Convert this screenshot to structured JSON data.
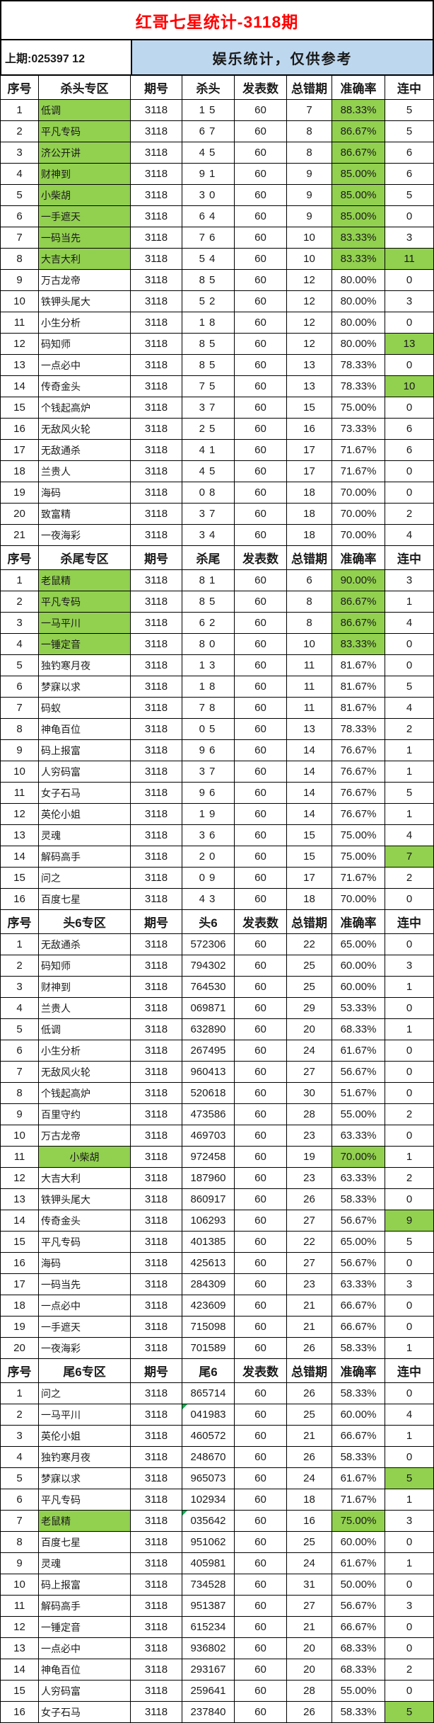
{
  "header": {
    "title": "红哥七星统计-3118期",
    "previous": "上期:025397 12",
    "notice": "娱乐统计，仅供参考"
  },
  "colors": {
    "highlight_green": "#92D050",
    "banner_blue": "#BDD7EE",
    "title_red": "#FF0000"
  },
  "tables": [
    {
      "columns": [
        "序号",
        "杀头专区",
        "期号",
        "杀头",
        "发表数",
        "总错期",
        "准确率",
        "连中"
      ],
      "digit_spaced": true,
      "green_name_rows": [
        1,
        2,
        3,
        4,
        5,
        6,
        7,
        8
      ],
      "green_acc_rows": [
        1,
        2,
        3,
        4,
        5,
        6,
        7,
        8
      ],
      "green_streak_rows": [
        8,
        12,
        14
      ],
      "flag_rows": [],
      "center_name_rows": [],
      "rows": [
        [
          "1",
          "低调",
          "3118",
          "15",
          "60",
          "7",
          "88.33%",
          "5"
        ],
        [
          "2",
          "平凡专码",
          "3118",
          "67",
          "60",
          "8",
          "86.67%",
          "5"
        ],
        [
          "3",
          "济公开讲",
          "3118",
          "45",
          "60",
          "8",
          "86.67%",
          "6"
        ],
        [
          "4",
          "财神到",
          "3118",
          "91",
          "60",
          "9",
          "85.00%",
          "6"
        ],
        [
          "5",
          "小柴胡",
          "3118",
          "30",
          "60",
          "9",
          "85.00%",
          "5"
        ],
        [
          "6",
          "一手遮天",
          "3118",
          "64",
          "60",
          "9",
          "85.00%",
          "0"
        ],
        [
          "7",
          "一码当先",
          "3118",
          "76",
          "60",
          "10",
          "83.33%",
          "3"
        ],
        [
          "8",
          "大吉大利",
          "3118",
          "54",
          "60",
          "10",
          "83.33%",
          "11"
        ],
        [
          "9",
          "万古龙帝",
          "3118",
          "85",
          "60",
          "12",
          "80.00%",
          "0"
        ],
        [
          "10",
          "铁钾头尾大",
          "3118",
          "52",
          "60",
          "12",
          "80.00%",
          "3"
        ],
        [
          "11",
          "小生分析",
          "3118",
          "18",
          "60",
          "12",
          "80.00%",
          "0"
        ],
        [
          "12",
          "码知师",
          "3118",
          "85",
          "60",
          "12",
          "80.00%",
          "13"
        ],
        [
          "13",
          "一点必中",
          "3118",
          "85",
          "60",
          "13",
          "78.33%",
          "0"
        ],
        [
          "14",
          "传奇金头",
          "3118",
          "75",
          "60",
          "13",
          "78.33%",
          "10"
        ],
        [
          "15",
          "个钱起高炉",
          "3118",
          "37",
          "60",
          "15",
          "75.00%",
          "0"
        ],
        [
          "16",
          "无敌风火轮",
          "3118",
          "25",
          "60",
          "16",
          "73.33%",
          "6"
        ],
        [
          "17",
          "无敌通杀",
          "3118",
          "41",
          "60",
          "17",
          "71.67%",
          "6"
        ],
        [
          "18",
          "兰贵人",
          "3118",
          "45",
          "60",
          "17",
          "71.67%",
          "0"
        ],
        [
          "19",
          "海码",
          "3118",
          "08",
          "60",
          "18",
          "70.00%",
          "0"
        ],
        [
          "20",
          "致富精",
          "3118",
          "37",
          "60",
          "18",
          "70.00%",
          "2"
        ],
        [
          "21",
          "一夜海彩",
          "3118",
          "34",
          "60",
          "18",
          "70.00%",
          "4"
        ]
      ]
    },
    {
      "columns": [
        "序号",
        "杀尾专区",
        "期号",
        "杀尾",
        "发表数",
        "总错期",
        "准确率",
        "连中"
      ],
      "digit_spaced": true,
      "green_name_rows": [
        1,
        2,
        3,
        4
      ],
      "green_acc_rows": [
        1,
        2,
        3,
        4
      ],
      "green_streak_rows": [
        14
      ],
      "flag_rows": [],
      "center_name_rows": [],
      "rows": [
        [
          "1",
          "老鼠精",
          "3118",
          "81",
          "60",
          "6",
          "90.00%",
          "3"
        ],
        [
          "2",
          "平凡专码",
          "3118",
          "85",
          "60",
          "8",
          "86.67%",
          "1"
        ],
        [
          "3",
          "一马平川",
          "3118",
          "62",
          "60",
          "8",
          "86.67%",
          "4"
        ],
        [
          "4",
          "一锤定音",
          "3118",
          "80",
          "60",
          "10",
          "83.33%",
          "0"
        ],
        [
          "5",
          "独钓寒月夜",
          "3118",
          "13",
          "60",
          "11",
          "81.67%",
          "0"
        ],
        [
          "6",
          "梦寐以求",
          "3118",
          "18",
          "60",
          "11",
          "81.67%",
          "5"
        ],
        [
          "7",
          "码蚁",
          "3118",
          "78",
          "60",
          "11",
          "81.67%",
          "4"
        ],
        [
          "8",
          "神龟百位",
          "3118",
          "05",
          "60",
          "13",
          "78.33%",
          "2"
        ],
        [
          "9",
          "码上报富",
          "3118",
          "96",
          "60",
          "14",
          "76.67%",
          "1"
        ],
        [
          "10",
          "人穷码富",
          "3118",
          "37",
          "60",
          "14",
          "76.67%",
          "1"
        ],
        [
          "11",
          "女子石马",
          "3118",
          "96",
          "60",
          "14",
          "76.67%",
          "5"
        ],
        [
          "12",
          "英伦小姐",
          "3118",
          "19",
          "60",
          "14",
          "76.67%",
          "1"
        ],
        [
          "13",
          "灵魂",
          "3118",
          "36",
          "60",
          "15",
          "75.00%",
          "4"
        ],
        [
          "14",
          "解码高手",
          "3118",
          "20",
          "60",
          "15",
          "75.00%",
          "7"
        ],
        [
          "15",
          "问之",
          "3118",
          "09",
          "60",
          "17",
          "71.67%",
          "2"
        ],
        [
          "16",
          "百度七星",
          "3118",
          "43",
          "60",
          "18",
          "70.00%",
          "0"
        ]
      ]
    },
    {
      "columns": [
        "序号",
        "头6专区",
        "期号",
        "头6",
        "发表数",
        "总错期",
        "准确率",
        "连中"
      ],
      "digit_spaced": false,
      "green_name_rows": [
        11
      ],
      "green_acc_rows": [
        11
      ],
      "green_streak_rows": [
        14
      ],
      "flag_rows": [],
      "center_name_rows": [
        11
      ],
      "rows": [
        [
          "1",
          "无敌通杀",
          "3118",
          "572306",
          "60",
          "22",
          "65.00%",
          "0"
        ],
        [
          "2",
          "码知师",
          "3118",
          "794302",
          "60",
          "25",
          "60.00%",
          "3"
        ],
        [
          "3",
          "财神到",
          "3118",
          "764530",
          "60",
          "25",
          "60.00%",
          "1"
        ],
        [
          "4",
          "兰贵人",
          "3118",
          "069871",
          "60",
          "29",
          "53.33%",
          "0"
        ],
        [
          "5",
          "低调",
          "3118",
          "632890",
          "60",
          "20",
          "68.33%",
          "1"
        ],
        [
          "6",
          "小生分析",
          "3118",
          "267495",
          "60",
          "24",
          "61.67%",
          "0"
        ],
        [
          "7",
          "无敌风火轮",
          "3118",
          "960413",
          "60",
          "27",
          "56.67%",
          "0"
        ],
        [
          "8",
          "个钱起高炉",
          "3118",
          "520618",
          "60",
          "30",
          "51.67%",
          "0"
        ],
        [
          "9",
          "百里守约",
          "3118",
          "473586",
          "60",
          "28",
          "55.00%",
          "2"
        ],
        [
          "10",
          "万古龙帝",
          "3118",
          "469703",
          "60",
          "23",
          "63.33%",
          "0"
        ],
        [
          "11",
          "小柴胡",
          "3118",
          "972458",
          "60",
          "19",
          "70.00%",
          "1"
        ],
        [
          "12",
          "大吉大利",
          "3118",
          "187960",
          "60",
          "23",
          "63.33%",
          "2"
        ],
        [
          "13",
          "铁钾头尾大",
          "3118",
          "860917",
          "60",
          "26",
          "58.33%",
          "0"
        ],
        [
          "14",
          "传奇金头",
          "3118",
          "106293",
          "60",
          "27",
          "56.67%",
          "9"
        ],
        [
          "15",
          "平凡专码",
          "3118",
          "401385",
          "60",
          "22",
          "65.00%",
          "5"
        ],
        [
          "16",
          "海码",
          "3118",
          "425613",
          "60",
          "27",
          "56.67%",
          "0"
        ],
        [
          "17",
          "一码当先",
          "3118",
          "284309",
          "60",
          "23",
          "63.33%",
          "3"
        ],
        [
          "18",
          "一点必中",
          "3118",
          "423609",
          "60",
          "21",
          "66.67%",
          "0"
        ],
        [
          "19",
          "一手遮天",
          "3118",
          "715098",
          "60",
          "21",
          "66.67%",
          "0"
        ],
        [
          "20",
          "一夜海彩",
          "3118",
          "701589",
          "60",
          "26",
          "58.33%",
          "1"
        ]
      ]
    },
    {
      "columns": [
        "序号",
        "尾6专区",
        "期号",
        "尾6",
        "发表数",
        "总错期",
        "准确率",
        "连中"
      ],
      "digit_spaced": false,
      "green_name_rows": [
        7
      ],
      "green_acc_rows": [
        7
      ],
      "green_streak_rows": [
        5,
        16
      ],
      "flag_rows": [
        2,
        7
      ],
      "center_name_rows": [],
      "rows": [
        [
          "1",
          "问之",
          "3118",
          "865714",
          "60",
          "26",
          "58.33%",
          "0"
        ],
        [
          "2",
          "一马平川",
          "3118",
          "041983",
          "60",
          "25",
          "60.00%",
          "4"
        ],
        [
          "3",
          "英伦小姐",
          "3118",
          "460572",
          "60",
          "21",
          "66.67%",
          "1"
        ],
        [
          "4",
          "独钓寒月夜",
          "3118",
          "248670",
          "60",
          "26",
          "58.33%",
          "0"
        ],
        [
          "5",
          "梦寐以求",
          "3118",
          "965073",
          "60",
          "24",
          "61.67%",
          "5"
        ],
        [
          "6",
          "平凡专码",
          "3118",
          "102934",
          "60",
          "18",
          "71.67%",
          "1"
        ],
        [
          "7",
          "老鼠精",
          "3118",
          "035642",
          "60",
          "16",
          "75.00%",
          "3"
        ],
        [
          "8",
          "百度七星",
          "3118",
          "951062",
          "60",
          "25",
          "60.00%",
          "0"
        ],
        [
          "9",
          "灵魂",
          "3118",
          "405981",
          "60",
          "24",
          "61.67%",
          "1"
        ],
        [
          "10",
          "码上报富",
          "3118",
          "734528",
          "60",
          "31",
          "50.00%",
          "0"
        ],
        [
          "11",
          "解码高手",
          "3118",
          "951387",
          "60",
          "27",
          "56.67%",
          "3"
        ],
        [
          "12",
          "一锤定音",
          "3118",
          "615234",
          "60",
          "21",
          "66.67%",
          "0"
        ],
        [
          "13",
          "一点必中",
          "3118",
          "936802",
          "60",
          "20",
          "68.33%",
          "0"
        ],
        [
          "14",
          "神龟百位",
          "3118",
          "293167",
          "60",
          "20",
          "68.33%",
          "2"
        ],
        [
          "15",
          "人穷码富",
          "3118",
          "259641",
          "60",
          "28",
          "55.00%",
          "0"
        ],
        [
          "16",
          "女子石马",
          "3118",
          "237840",
          "60",
          "26",
          "58.33%",
          "5"
        ]
      ]
    }
  ]
}
